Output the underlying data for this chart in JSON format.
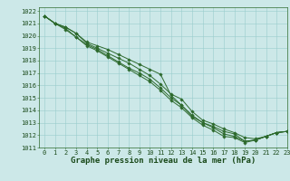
{
  "title": "Graphe pression niveau de la mer (hPa)",
  "xlim": [
    -0.5,
    23
  ],
  "ylim": [
    1011,
    1022.3
  ],
  "yticks": [
    1011,
    1012,
    1013,
    1014,
    1015,
    1016,
    1017,
    1018,
    1019,
    1020,
    1021,
    1022
  ],
  "xticks": [
    0,
    1,
    2,
    3,
    4,
    5,
    6,
    7,
    8,
    9,
    10,
    11,
    12,
    13,
    14,
    15,
    16,
    17,
    18,
    19,
    20,
    21,
    22,
    23
  ],
  "line_color": "#2d6a2d",
  "bg_color": "#cce8e8",
  "grid_color": "#99cccc",
  "title_color": "#1a4a1a",
  "series1": [
    1021.6,
    1021.0,
    1020.7,
    1020.2,
    1019.5,
    1019.2,
    1018.9,
    1018.5,
    1018.1,
    1017.7,
    1017.3,
    1016.9,
    1015.2,
    1014.4,
    1013.5,
    1013.0,
    1012.7,
    1012.3,
    1012.1,
    1011.5,
    1011.6,
    1011.9,
    1012.2,
    1012.3
  ],
  "series2": [
    1021.6,
    1021.0,
    1020.7,
    1020.2,
    1019.4,
    1019.0,
    1018.6,
    1018.2,
    1017.8,
    1017.3,
    1016.8,
    1016.1,
    1015.3,
    1014.9,
    1013.9,
    1013.2,
    1012.9,
    1012.5,
    1012.2,
    1011.8,
    1011.7,
    1011.9,
    1012.2,
    1012.3
  ],
  "series3": [
    1021.6,
    1021.0,
    1020.6,
    1019.9,
    1019.3,
    1018.9,
    1018.4,
    1017.9,
    1017.4,
    1017.0,
    1016.5,
    1015.8,
    1015.0,
    1014.4,
    1013.6,
    1013.0,
    1012.6,
    1012.1,
    1011.9,
    1011.5,
    1011.6,
    1011.9,
    1012.2,
    1012.3
  ],
  "series4": [
    1021.6,
    1021.0,
    1020.5,
    1019.9,
    1019.2,
    1018.8,
    1018.3,
    1017.8,
    1017.3,
    1016.8,
    1016.3,
    1015.6,
    1014.8,
    1014.2,
    1013.4,
    1012.8,
    1012.4,
    1011.9,
    1011.8,
    1011.4,
    1011.6,
    1011.9,
    1012.2,
    1012.3
  ],
  "marker": "D",
  "marker_size": 1.8,
  "linewidth": 0.7,
  "title_fontsize": 6.5,
  "tick_fontsize": 5.0
}
